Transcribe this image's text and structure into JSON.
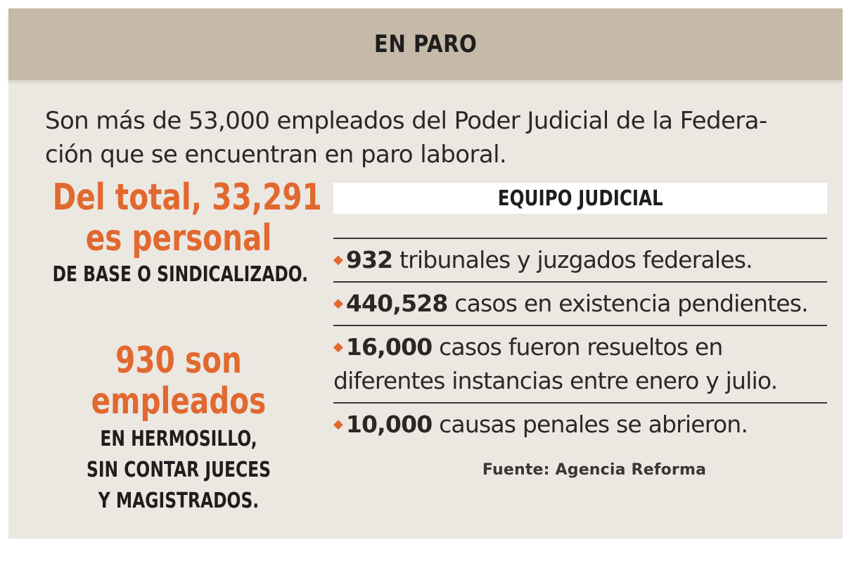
{
  "header": {
    "title": "EN PARO"
  },
  "intro": {
    "line1": "Son más de 53,000 empleados del Poder Judicial de la Federa-",
    "line2": "ción que se encuentran en paro laboral."
  },
  "left": {
    "block1": {
      "line1": "Del total, 33,291",
      "line2": "es personal",
      "caption": "DE BASE O SINDICALIZADO."
    },
    "block2": {
      "line1": "930 son",
      "line2": "empleados",
      "caption1": "EN HERMOSILLO,",
      "caption2": "SIN CONTAR JUECES",
      "caption3": "Y MAGISTRADOS."
    }
  },
  "right": {
    "title": "EQUIPO JUDICIAL",
    "bullet": "◆",
    "items": [
      {
        "num": "932",
        "text": " tribunales y juzgados federales."
      },
      {
        "num": "440,528",
        "text": " casos en existencia pendientes."
      },
      {
        "num": "16,000",
        "text": " casos fueron resueltos en",
        "text2": "diferentes instancias entre enero y julio."
      },
      {
        "num": "10,000",
        "text": " causas penales se abrieron."
      }
    ],
    "source": "Fuente: Agencia Reforma"
  },
  "colors": {
    "accent": "#e1682f",
    "header_bg": "#c6b9a9",
    "panel_bg": "#ebe7e1"
  }
}
